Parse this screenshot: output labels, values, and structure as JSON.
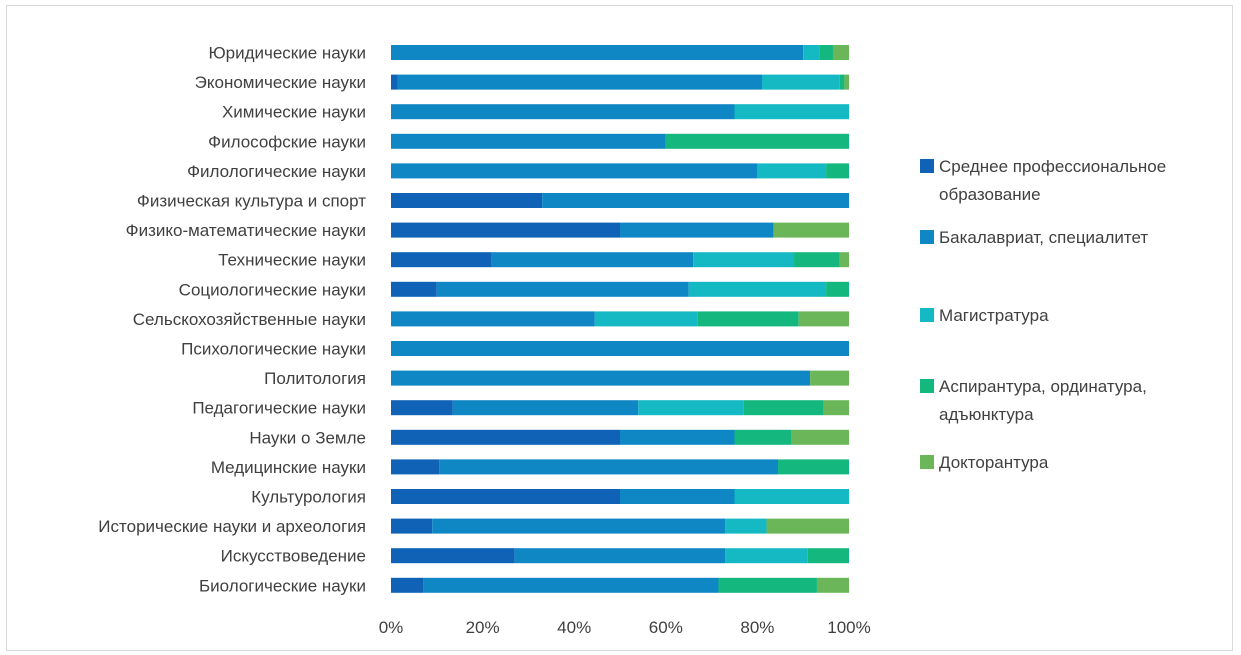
{
  "chart_data": {
    "type": "bar",
    "orientation": "horizontal",
    "stacked": "percent",
    "categories": [
      "Юридические науки",
      "Экономические науки",
      "Химические науки",
      "Философские науки",
      "Филологические науки",
      "Физическая культура и спорт",
      "Физико-математические науки",
      "Технические науки",
      "Социологические науки",
      "Сельскохозяйственные науки",
      "Психологические науки",
      "Политология",
      "Педагогические науки",
      "Науки о Земле",
      "Медицинские науки",
      "Культурология",
      "Исторические науки и археология",
      "Искусствоведение",
      "Биологические науки"
    ],
    "series": [
      {
        "name": "Среднее профессиональное образование",
        "name_lines": [
          "Среднее профессиональное",
          "образование"
        ],
        "color": "#0f62b5",
        "values": [
          0,
          1.5,
          0,
          0,
          0,
          33,
          50,
          22,
          10,
          0,
          0,
          0,
          13.5,
          50,
          10.5,
          50,
          9,
          27,
          7
        ]
      },
      {
        "name": "Бакалавриат, специалитет",
        "name_lines": [
          "Бакалавриат, специалитет"
        ],
        "color": "#0e87c4",
        "values": [
          90,
          79.5,
          75,
          60,
          80,
          67,
          33.5,
          44,
          55,
          44.5,
          100,
          91.5,
          40.5,
          25,
          74,
          25,
          64,
          46,
          64.5
        ]
      },
      {
        "name": "Магистратура",
        "name_lines": [
          "Магистратура"
        ],
        "color": "#14b9c4",
        "values": [
          3.5,
          17,
          25,
          0,
          15,
          0,
          0,
          22,
          30,
          22.5,
          0,
          0,
          23,
          0,
          0,
          25,
          9,
          18,
          0
        ]
      },
      {
        "name": "Аспирантура, ординатура, адъюнктура",
        "name_lines": [
          "Аспирантура, ординатура,",
          "адъюнктура"
        ],
        "color": "#14b87e",
        "values": [
          3,
          1,
          0,
          40,
          5,
          0,
          0,
          10,
          5,
          22,
          0,
          0,
          17.5,
          12.5,
          15.5,
          0,
          0,
          9,
          21.5
        ]
      },
      {
        "name": "Докторантура",
        "name_lines": [
          "Докторантура"
        ],
        "color": "#6cb65a",
        "values": [
          3.5,
          1,
          0,
          0,
          0,
          0,
          16.5,
          2,
          0,
          11,
          0,
          8.5,
          5.5,
          12.5,
          0,
          0,
          18,
          0,
          7
        ]
      }
    ],
    "x_ticks": [
      "0%",
      "20%",
      "40%",
      "60%",
      "80%",
      "100%"
    ],
    "xlim": [
      0,
      100
    ],
    "grid": false,
    "legend_position": "right"
  }
}
